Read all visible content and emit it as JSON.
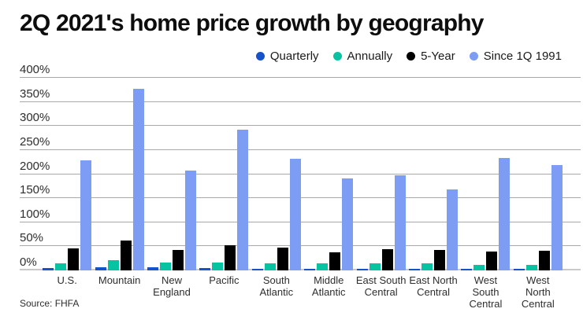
{
  "title": "2Q 2021's home price growth by geography",
  "source": "Source: FHFA",
  "colors": {
    "quarterly": "#1652c9",
    "annually": "#06c3a2",
    "five_year": "#000000",
    "since_1991": "#7d9df4",
    "gridline": "#a9a9a9",
    "baseline": "#c9c9c9",
    "title_text": "#0d0d0d",
    "axis_text": "#2e2e2e"
  },
  "chart_data": {
    "type": "bar",
    "title": "2Q 2021's home price growth by geography",
    "xlabel": "",
    "ylabel": "",
    "ylim": [
      0,
      400
    ],
    "ytick_step": 50,
    "ytick_format": "percent",
    "grid": "horizontal",
    "legend_position": "top-right",
    "categories": [
      "U.S.",
      "Mountain",
      "New\nEngland",
      "Pacific",
      "South\nAtlantic",
      "Middle\nAtlantic",
      "East South\nCentral",
      "East North\nCentral",
      "West\nSouth\nCentral",
      "West\nNorth\nCentral"
    ],
    "series": [
      {
        "name": "Quarterly",
        "color_key": "quarterly",
        "values": [
          5,
          7,
          6,
          5,
          4,
          4,
          4,
          3,
          3,
          3
        ]
      },
      {
        "name": "Annually",
        "color_key": "annually",
        "values": [
          15,
          21,
          17,
          17,
          15,
          14,
          14,
          14,
          12,
          12
        ]
      },
      {
        "name": "5-Year",
        "color_key": "five_year",
        "values": [
          45,
          62,
          43,
          52,
          47,
          38,
          44,
          43,
          39,
          41
        ]
      },
      {
        "name": "Since 1Q 1991",
        "color_key": "since_1991",
        "values": [
          228,
          377,
          208,
          292,
          232,
          191,
          198,
          169,
          234,
          218
        ]
      }
    ]
  }
}
